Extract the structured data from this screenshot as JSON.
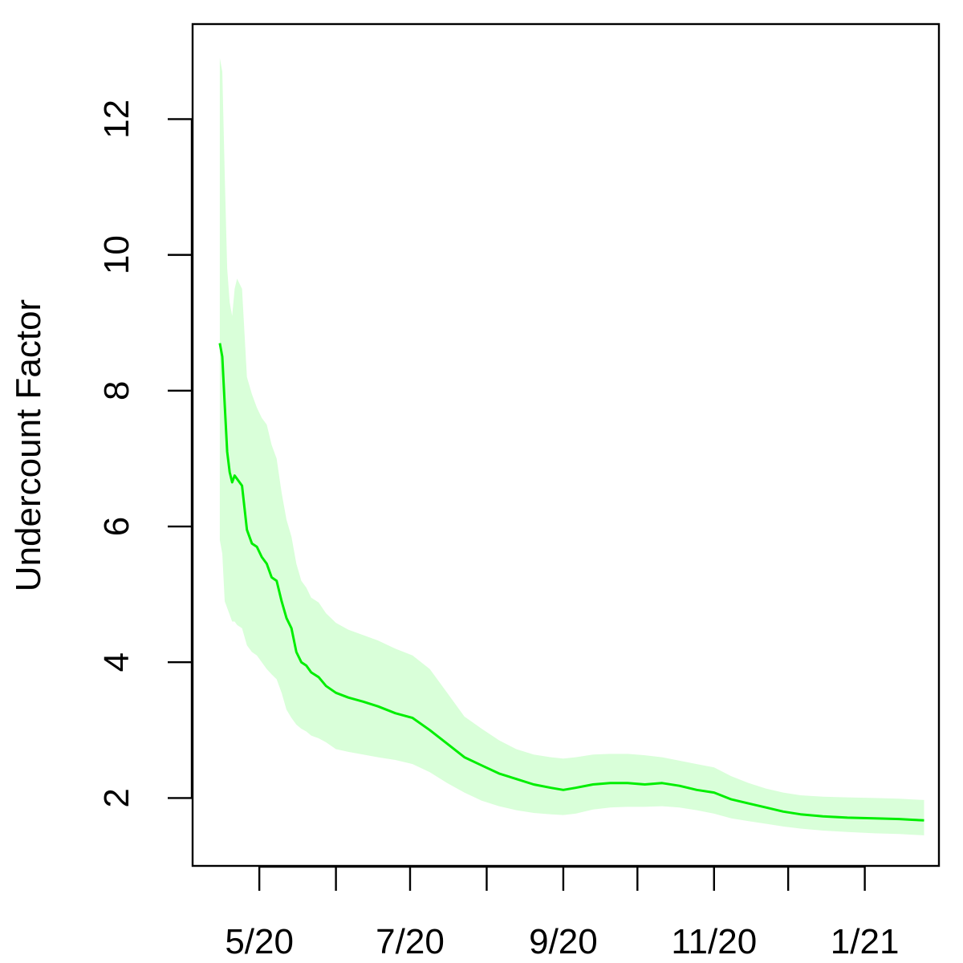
{
  "chart_data": {
    "type": "line",
    "title": "",
    "xlabel": "",
    "ylabel": "Undercount Factor",
    "xlim": [
      "2020-04-04",
      "2021-01-31"
    ],
    "ylim": [
      1.0,
      13.4
    ],
    "x_ticks": [
      "2020-05-01",
      "2020-06-01",
      "2020-07-01",
      "2020-08-01",
      "2020-09-01",
      "2020-10-01",
      "2020-11-01",
      "2020-12-01",
      "2021-01-01"
    ],
    "x_tick_labels": [
      {
        "date": "2020-05-01",
        "label": "5/20"
      },
      {
        "date": "2020-07-01",
        "label": "7/20"
      },
      {
        "date": "2020-09-01",
        "label": "9/20"
      },
      {
        "date": "2020-11-01",
        "label": "11/20"
      },
      {
        "date": "2021-01-01",
        "label": "1/21"
      }
    ],
    "y_ticks": [
      2,
      4,
      6,
      8,
      10,
      12
    ],
    "y_tick_labels": [
      "2",
      "4",
      "6",
      "8",
      "10",
      "12"
    ],
    "grid": false,
    "line_color": "#00ee00",
    "band_color": "#d9ffd9",
    "series": [
      {
        "x": [
          "2020-04-15",
          "2020-04-16",
          "2020-04-17",
          "2020-04-18",
          "2020-04-19",
          "2020-04-20",
          "2020-04-21",
          "2020-04-22",
          "2020-04-24",
          "2020-04-26",
          "2020-04-28",
          "2020-04-30",
          "2020-05-02",
          "2020-05-04",
          "2020-05-06",
          "2020-05-08",
          "2020-05-10",
          "2020-05-12",
          "2020-05-14",
          "2020-05-16",
          "2020-05-18",
          "2020-05-20",
          "2020-05-22",
          "2020-05-25",
          "2020-05-28",
          "2020-06-01",
          "2020-06-06",
          "2020-06-12",
          "2020-06-18",
          "2020-06-25",
          "2020-07-02",
          "2020-07-09",
          "2020-07-16",
          "2020-07-23",
          "2020-07-30",
          "2020-08-06",
          "2020-08-13",
          "2020-08-20",
          "2020-08-27",
          "2020-09-01",
          "2020-09-06",
          "2020-09-13",
          "2020-09-20",
          "2020-09-27",
          "2020-10-04",
          "2020-10-11",
          "2020-10-18",
          "2020-10-25",
          "2020-11-01",
          "2020-11-08",
          "2020-11-15",
          "2020-11-22",
          "2020-11-29",
          "2020-12-06",
          "2020-12-15",
          "2020-12-25",
          "2021-01-05",
          "2021-01-15",
          "2021-01-20",
          "2021-01-25"
        ],
        "y": [
          8.7,
          8.5,
          7.8,
          7.1,
          6.8,
          6.65,
          6.75,
          6.7,
          6.6,
          5.95,
          5.75,
          5.7,
          5.55,
          5.45,
          5.25,
          5.2,
          4.9,
          4.65,
          4.5,
          4.15,
          4.0,
          3.95,
          3.85,
          3.78,
          3.65,
          3.55,
          3.48,
          3.42,
          3.35,
          3.25,
          3.18,
          3.0,
          2.8,
          2.6,
          2.48,
          2.36,
          2.28,
          2.2,
          2.15,
          2.12,
          2.15,
          2.2,
          2.22,
          2.22,
          2.2,
          2.22,
          2.18,
          2.12,
          2.08,
          1.98,
          1.92,
          1.86,
          1.8,
          1.76,
          1.73,
          1.71,
          1.7,
          1.69,
          1.68,
          1.67
        ],
        "lower": [
          5.8,
          5.6,
          4.9,
          4.8,
          4.7,
          4.6,
          4.6,
          4.55,
          4.5,
          4.25,
          4.15,
          4.1,
          4.0,
          3.9,
          3.82,
          3.75,
          3.55,
          3.3,
          3.18,
          3.08,
          3.02,
          2.98,
          2.92,
          2.88,
          2.82,
          2.72,
          2.68,
          2.64,
          2.6,
          2.56,
          2.5,
          2.38,
          2.22,
          2.08,
          1.96,
          1.88,
          1.82,
          1.78,
          1.76,
          1.75,
          1.77,
          1.83,
          1.86,
          1.87,
          1.87,
          1.88,
          1.86,
          1.82,
          1.77,
          1.7,
          1.66,
          1.62,
          1.58,
          1.55,
          1.52,
          1.5,
          1.48,
          1.47,
          1.46,
          1.45
        ],
        "upper": [
          12.9,
          12.7,
          11.2,
          9.8,
          9.3,
          9.1,
          9.5,
          9.65,
          9.5,
          8.2,
          7.95,
          7.75,
          7.6,
          7.5,
          7.2,
          7.0,
          6.5,
          6.1,
          5.85,
          5.45,
          5.2,
          5.1,
          4.95,
          4.88,
          4.72,
          4.58,
          4.48,
          4.4,
          4.32,
          4.2,
          4.1,
          3.9,
          3.55,
          3.2,
          3.02,
          2.85,
          2.72,
          2.64,
          2.6,
          2.58,
          2.6,
          2.64,
          2.65,
          2.65,
          2.63,
          2.6,
          2.55,
          2.5,
          2.45,
          2.32,
          2.22,
          2.14,
          2.08,
          2.04,
          2.02,
          2.01,
          2.0,
          1.99,
          1.98,
          1.97
        ]
      }
    ]
  }
}
